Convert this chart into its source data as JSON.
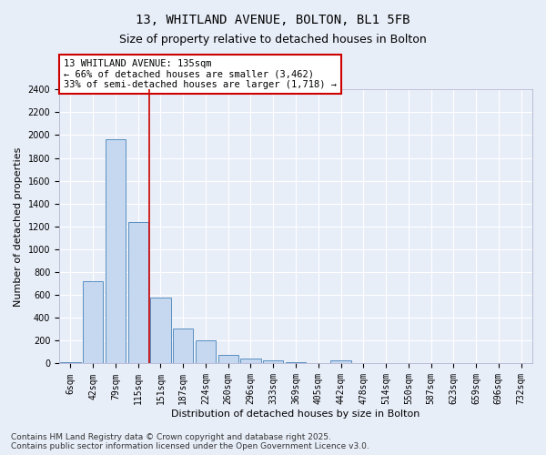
{
  "title_line1": "13, WHITLAND AVENUE, BOLTON, BL1 5FB",
  "title_line2": "Size of property relative to detached houses in Bolton",
  "xlabel": "Distribution of detached houses by size in Bolton",
  "ylabel": "Number of detached properties",
  "categories": [
    "6sqm",
    "42sqm",
    "79sqm",
    "115sqm",
    "151sqm",
    "187sqm",
    "224sqm",
    "260sqm",
    "296sqm",
    "333sqm",
    "369sqm",
    "405sqm",
    "442sqm",
    "478sqm",
    "514sqm",
    "550sqm",
    "587sqm",
    "623sqm",
    "659sqm",
    "696sqm",
    "732sqm"
  ],
  "values": [
    10,
    720,
    1960,
    1240,
    580,
    305,
    200,
    75,
    40,
    30,
    10,
    0,
    30,
    5,
    0,
    0,
    0,
    0,
    0,
    0,
    0
  ],
  "bar_color": "#c5d8f0",
  "bar_edge_color": "#5a8fc0",
  "vline_pos": 3.5,
  "vline_color": "#cc0000",
  "annotation_text": "13 WHITLAND AVENUE: 135sqm\n← 66% of detached houses are smaller (3,462)\n33% of semi-detached houses are larger (1,718) →",
  "annotation_box_color": "#ffffff",
  "annotation_box_edge": "#cc0000",
  "ylim": [
    0,
    2400
  ],
  "yticks": [
    0,
    200,
    400,
    600,
    800,
    1000,
    1200,
    1400,
    1600,
    1800,
    2000,
    2200,
    2400
  ],
  "bg_color": "#e8eef8",
  "footer_text": "Contains HM Land Registry data © Crown copyright and database right 2025.\nContains public sector information licensed under the Open Government Licence v3.0.",
  "grid_color": "#ffffff",
  "title_fontsize": 10,
  "subtitle_fontsize": 9,
  "axis_label_fontsize": 8,
  "tick_fontsize": 7,
  "annotation_fontsize": 7.5,
  "footer_fontsize": 6.5
}
